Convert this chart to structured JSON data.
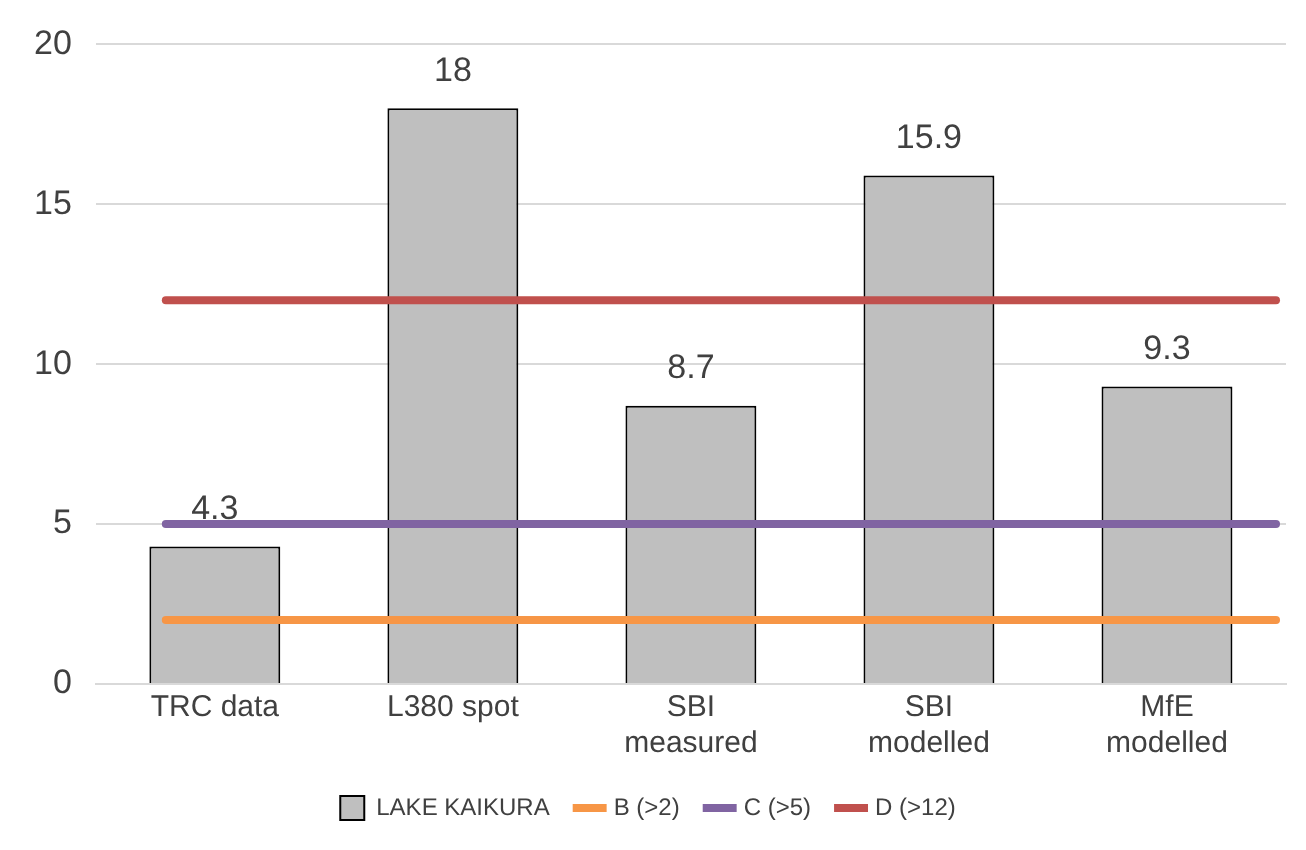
{
  "chart_data": {
    "type": "bar",
    "categories": [
      "TRC data",
      "L380 spot",
      "SBI measured",
      "SBI modelled",
      "MfE modelled"
    ],
    "series": [
      {
        "name": "LAKE KAIKURA",
        "color": "#bfbfbf",
        "values": [
          4.3,
          18,
          8.7,
          15.9,
          9.3
        ]
      }
    ],
    "ref_lines": [
      {
        "axis": "y",
        "value": 2,
        "label": "B (>2)",
        "color": "#f79646"
      },
      {
        "axis": "y",
        "value": 5,
        "label": "C (>5)",
        "color": "#8064a2"
      },
      {
        "axis": "y",
        "value": 12,
        "label": "D (>12)",
        "color": "#c0504d"
      }
    ],
    "ylim": [
      0,
      20
    ],
    "yticks": [
      0,
      5,
      10,
      15,
      20
    ],
    "grid": "y",
    "data_labels": true,
    "legend": "bottom"
  }
}
